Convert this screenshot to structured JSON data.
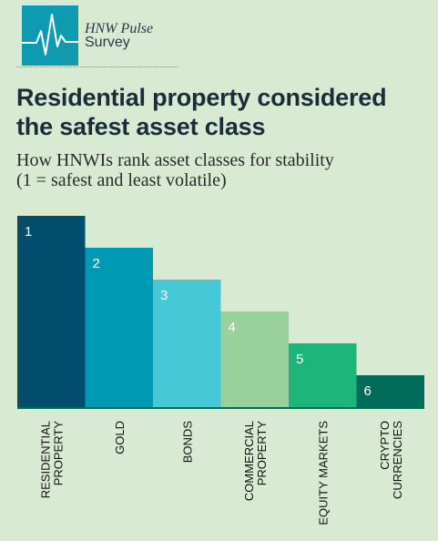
{
  "brand": {
    "line1": "HNW Pulse",
    "line2": "Survey",
    "color": "#0e9ab0"
  },
  "title": "Residential property considered the safest asset class",
  "subtitle_line1": "How HNWIs rank asset classes for stability",
  "subtitle_line2": " (1 = safest and least volatile)",
  "chart_data": {
    "type": "bar",
    "categories": [
      "RESIDENTIAL\nPROPERTY",
      "GOLD",
      "BONDS",
      "COMMERCIAL\nPROPERTY",
      "EQUITY MARKETS",
      "CRYPTO\nCURRENCIES"
    ],
    "values": [
      1,
      2,
      3,
      4,
      5,
      6
    ],
    "data_labels": [
      "1",
      "2",
      "3",
      "4",
      "5",
      "6"
    ],
    "colors": [
      "#004d6e",
      "#0099b3",
      "#47c8d6",
      "#99d19c",
      "#1db57a",
      "#006b58"
    ],
    "baseline_color": "#006b58",
    "xlabel": "",
    "ylabel": "",
    "grid": false,
    "inverted_rank_scale": true
  }
}
